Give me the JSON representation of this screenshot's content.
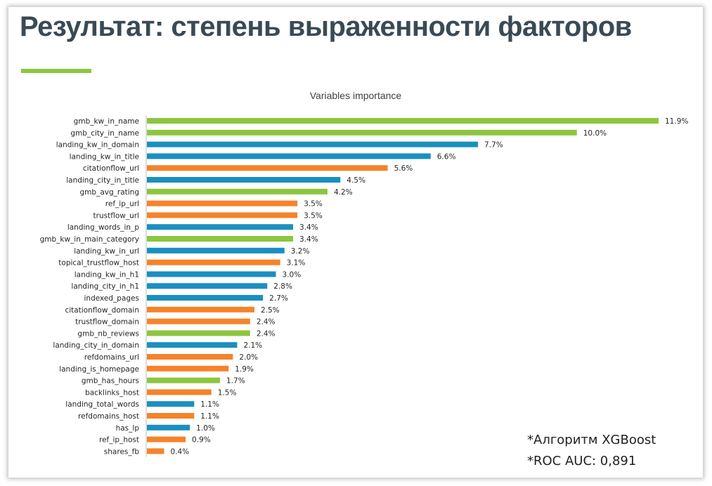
{
  "slide": {
    "title": "Результат: степень выраженности факторов",
    "accent_color": "#8cc63f",
    "notes": [
      "*Алгоритм XGBoost",
      "*ROC AUC: 0,891"
    ]
  },
  "colors": {
    "green": "#8cc63f",
    "blue": "#1a8fc1",
    "orange": "#f5832a"
  },
  "chart_data": {
    "type": "bar",
    "orientation": "horizontal",
    "title": "Variables importance",
    "value_format": "percent",
    "xlim": [
      0,
      11.9
    ],
    "grid": false,
    "legend": "none",
    "categories": [
      "gmb_kw_in_name",
      "gmb_city_in_name",
      "landing_kw_in_domain",
      "landing_kw_in_title",
      "citationflow_url",
      "landing_city_in_title",
      "gmb_avg_rating",
      "ref_ip_url",
      "trustflow_url",
      "landing_words_in_p",
      "gmb_kw_in_main_category",
      "landing_kw_in_url",
      "topical_trustflow_host",
      "landing_kw_in_h1",
      "landing_city_in_h1",
      "indexed_pages",
      "citationflow_domain",
      "trustflow_domain",
      "gmb_nb_reviews",
      "landing_city_in_domain",
      "refdomains_url",
      "landing_is_homepage",
      "gmb_has_hours",
      "backlinks_host",
      "landing_total_words",
      "refdomains_host",
      "has_lp",
      "ref_ip_host",
      "shares_fb"
    ],
    "values": [
      11.9,
      10.0,
      7.7,
      6.6,
      5.6,
      4.5,
      4.2,
      3.5,
      3.5,
      3.4,
      3.4,
      3.2,
      3.1,
      3.0,
      2.8,
      2.7,
      2.5,
      2.4,
      2.4,
      2.1,
      2.0,
      1.9,
      1.7,
      1.5,
      1.1,
      1.1,
      1.0,
      0.9,
      0.4
    ],
    "bar_colors": [
      "green",
      "green",
      "blue",
      "blue",
      "orange",
      "blue",
      "green",
      "orange",
      "orange",
      "blue",
      "green",
      "blue",
      "orange",
      "blue",
      "blue",
      "blue",
      "orange",
      "orange",
      "green",
      "blue",
      "orange",
      "orange",
      "green",
      "orange",
      "blue",
      "orange",
      "blue",
      "orange",
      "orange"
    ]
  }
}
